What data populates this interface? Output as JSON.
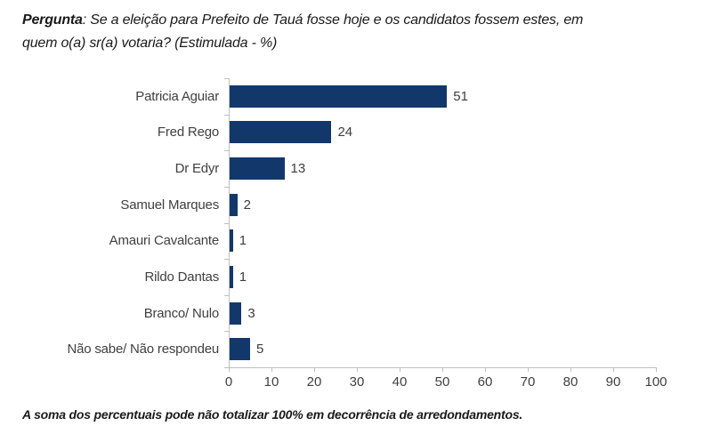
{
  "title": {
    "bold_prefix": "Pergunta",
    "line1_rest": ": Se a eleição para Prefeito de Tauá fosse hoje e os candidatos fossem estes, em",
    "line2": "quem o(a) sr(a) votaria? (Estimulada - %)"
  },
  "footer": "A soma dos percentuais pode não totalizar 100% em decorrência de arredondamentos.",
  "colors": {
    "bar": "#12386b",
    "axis": "#bfbfbf",
    "label_text": "#404040",
    "title_text": "#1a1a1a"
  },
  "chart_data": {
    "type": "bar",
    "orientation": "horizontal",
    "title": "",
    "xlabel": "",
    "ylabel": "",
    "categories": [
      "Patricia Aguiar",
      "Fred Rego",
      "Dr Edyr",
      "Samuel Marques",
      "Amauri Cavalcante",
      "Rildo Dantas",
      "Branco/ Nulo",
      "Não sabe/ Não respondeu"
    ],
    "values": [
      51,
      24,
      13,
      2,
      1,
      1,
      3,
      5
    ],
    "value_labels": [
      "51",
      "24",
      "13",
      "2",
      "1",
      "1",
      "3",
      "5"
    ],
    "xlim": [
      0,
      100
    ],
    "x_ticks": [
      0,
      10,
      20,
      30,
      40,
      50,
      60,
      70,
      80,
      90,
      100
    ],
    "grid": false,
    "legend": false
  }
}
